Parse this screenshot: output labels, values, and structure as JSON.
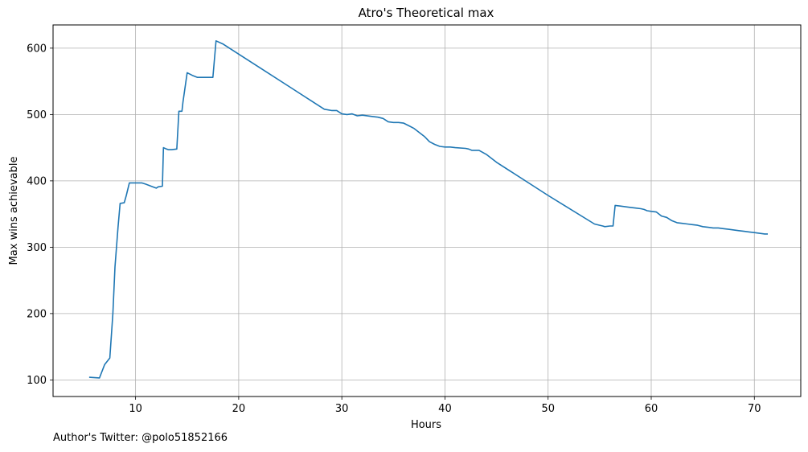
{
  "chart_data": {
    "type": "line",
    "title": "Atro's Theoretical max",
    "xlabel": "Hours",
    "ylabel": "Max wins achievable",
    "xlim": [
      2,
      74.5
    ],
    "ylim": [
      75,
      635
    ],
    "xticks": [
      10,
      20,
      30,
      40,
      50,
      60,
      70
    ],
    "yticks": [
      100,
      200,
      300,
      400,
      500,
      600
    ],
    "grid": true,
    "color": "#1f77b4",
    "series": [
      {
        "x": [
          5.5,
          6.5,
          7.0,
          7.5,
          7.8,
          8.0,
          8.3,
          8.5,
          8.9,
          9.1,
          9.4,
          10.0,
          10.6,
          11.0,
          11.5,
          12.0,
          12.2,
          12.6,
          12.7,
          13.0,
          13.2,
          13.5,
          14.0,
          14.2,
          14.5,
          14.6,
          15.0,
          15.5,
          16.0,
          17.0,
          17.5,
          17.8,
          18.5,
          19.0,
          20.0,
          22.0,
          25.0,
          27.0,
          28.3,
          29.0,
          29.5,
          30.0,
          30.5,
          31.0,
          31.5,
          32.0,
          33.0,
          33.5,
          34.0,
          34.5,
          35.0,
          35.5,
          36.0,
          36.5,
          37.0,
          38.0,
          38.5,
          39.0,
          39.5,
          40.0,
          40.5,
          41.0,
          42.0,
          42.3,
          42.6,
          43.0,
          43.3,
          44.0,
          45.0,
          50.0,
          54.5,
          55.0,
          55.3,
          55.5,
          56.0,
          56.3,
          56.5,
          57.0,
          57.5,
          58.0,
          58.5,
          59.0,
          59.3,
          59.6,
          60.0,
          60.5,
          61.0,
          61.5,
          62.0,
          62.5,
          63.0,
          63.5,
          64.0,
          64.5,
          65.0,
          65.5,
          66.0,
          66.5,
          67.0,
          67.5,
          68.0,
          68.5,
          69.0,
          69.5,
          70.0,
          70.5,
          71.0,
          71.3
        ],
        "y": [
          104,
          103,
          123,
          133,
          200,
          270,
          330,
          366,
          367,
          378,
          397,
          397,
          397,
          395,
          392,
          389,
          391,
          392,
          450,
          448,
          447,
          447,
          448,
          505,
          505,
          519,
          563,
          559,
          556,
          556,
          556,
          611,
          606,
          601,
          591,
          571,
          541,
          521,
          508,
          506,
          506,
          501,
          500,
          501,
          498,
          499,
          497,
          496,
          494,
          489,
          488,
          488,
          487,
          483,
          479,
          467,
          459,
          455,
          452,
          451,
          451,
          450,
          449,
          448,
          446,
          446,
          446,
          440,
          428,
          378,
          335,
          333,
          332,
          331,
          332,
          332,
          363,
          362,
          361,
          360,
          359,
          358,
          357,
          355,
          354,
          353,
          347,
          345,
          340,
          337,
          336,
          335,
          334,
          333,
          331,
          330,
          329,
          329,
          328,
          327,
          326,
          325,
          324,
          323,
          322,
          321,
          320,
          320
        ]
      }
    ]
  },
  "footer_text": "Author's Twitter: @polo51852166"
}
